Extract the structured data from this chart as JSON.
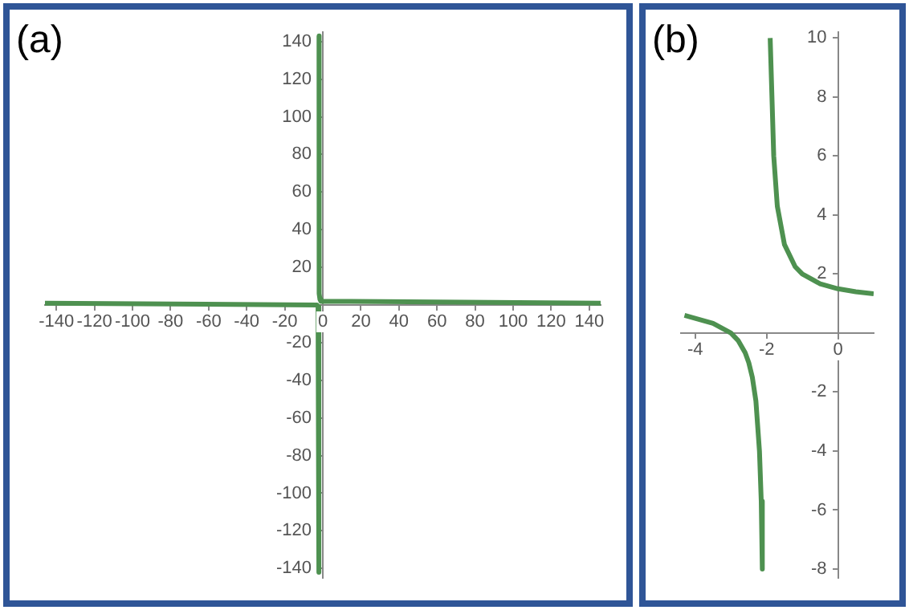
{
  "chart_data": [
    {
      "type": "line",
      "title": "(a)",
      "xlim": [
        -146,
        146
      ],
      "ylim": [
        -145,
        145
      ],
      "xticks": [
        -140,
        -120,
        -100,
        -80,
        -60,
        -40,
        -20,
        0,
        20,
        40,
        60,
        80,
        100,
        120,
        140
      ],
      "yticks": [
        -140,
        -120,
        -100,
        -80,
        -60,
        -40,
        -20,
        {
          "value": 0,
          "label": null
        },
        20,
        40,
        60,
        80,
        100,
        120,
        140
      ],
      "series": [
        {
          "color": "#4e9150",
          "x": [
            -146,
            -3,
            -2.5,
            -2.2,
            -2.1,
            -2.05,
            -2.02,
            -2.01,
            -2.007,
            null,
            -1.993,
            -1.99,
            -1.98,
            -1.95,
            -1.9,
            -1.8,
            -1.5,
            -1,
            146
          ],
          "values": [
            1,
            0,
            -1,
            -4,
            -9,
            -19,
            -49,
            -99,
            -142,
            null,
            143,
            101,
            51,
            21,
            11,
            6,
            3,
            2,
            1
          ]
        }
      ]
    },
    {
      "type": "line",
      "title": "(b)",
      "xlim": [
        -4.4,
        1
      ],
      "ylim": [
        -8.3,
        10.2
      ],
      "xticks": [
        -4,
        -2,
        0
      ],
      "yticks": [
        -8,
        -6,
        -4,
        -2,
        {
          "value": 0,
          "label": null
        },
        2,
        4,
        6,
        8,
        10
      ],
      "series": [
        {
          "color": "#4e9150",
          "x": [
            -4.3,
            -4,
            -3.5,
            -3,
            -2.8,
            -2.6,
            -2.5,
            -2.4,
            -2.3,
            -2.2,
            -2.15,
            -2.12,
            null,
            -1.9,
            -1.8,
            -1.7,
            -1.5,
            -1.2,
            -1,
            -0.5,
            0,
            0.5,
            1
          ],
          "values": [
            0.6,
            0.5,
            0.33,
            0,
            -0.25,
            -0.67,
            -1,
            -1.5,
            -2.3,
            -4,
            -5.7,
            -8,
            null,
            10,
            6,
            4.3,
            3,
            2.25,
            2,
            1.67,
            1.5,
            1.4,
            1.33
          ]
        }
      ]
    }
  ]
}
